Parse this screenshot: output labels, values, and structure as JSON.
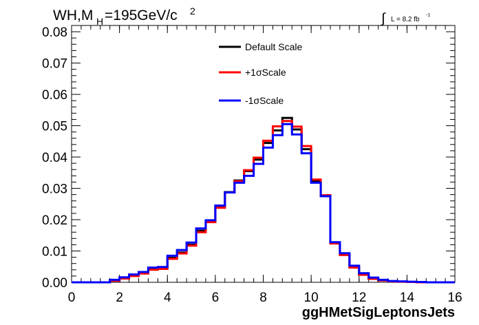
{
  "chart_data": {
    "type": "line",
    "title_main": "WH,M",
    "title_sub": "H",
    "title_rest": "=195GeV/c",
    "title_sup": "2",
    "lumi_text": "L = 8.2 fb",
    "lumi_sup": "-1",
    "xlabel": "ggHMetSigLeptonsJets",
    "xlim": [
      0,
      16
    ],
    "ylim": [
      0,
      0.082
    ],
    "xticks": [
      0,
      2,
      4,
      6,
      8,
      10,
      12,
      14,
      16
    ],
    "yticks": [
      "0.00",
      "0.01",
      "0.02",
      "0.03",
      "0.04",
      "0.05",
      "0.06",
      "0.07",
      "0.08"
    ],
    "bin_edges": [
      0,
      0.4,
      0.8,
      1.2,
      1.6,
      2.0,
      2.4,
      2.8,
      3.2,
      3.6,
      4.0,
      4.4,
      4.8,
      5.2,
      5.6,
      6.0,
      6.4,
      6.8,
      7.2,
      7.6,
      8.0,
      8.4,
      8.8,
      9.2,
      9.6,
      10.0,
      10.4,
      10.8,
      11.2,
      11.6,
      12.0,
      12.4,
      12.8,
      13.2,
      13.6,
      14.0,
      14.4,
      14.8,
      15.2,
      15.6,
      16.0
    ],
    "legend": {
      "placement": "top-center"
    },
    "series": [
      {
        "name": "Default Scale",
        "color": "#000000",
        "values": [
          0,
          0,
          0,
          0,
          0.0006,
          0.0013,
          0.0022,
          0.003,
          0.0042,
          0.0045,
          0.0078,
          0.0095,
          0.012,
          0.0165,
          0.0195,
          0.0242,
          0.0288,
          0.0325,
          0.0355,
          0.0392,
          0.0445,
          0.0485,
          0.0525,
          0.0488,
          0.0425,
          0.0322,
          0.0275,
          0.0125,
          0.0088,
          0.0048,
          0.0025,
          0.0012,
          0.0006,
          0.0003,
          0.0002,
          0.0001,
          0,
          0,
          0,
          0
        ]
      },
      {
        "name": "+1σScale",
        "color": "#ff0000",
        "values": [
          0,
          0,
          0,
          0,
          0.0005,
          0.0012,
          0.002,
          0.0028,
          0.004,
          0.0043,
          0.0075,
          0.0092,
          0.0117,
          0.016,
          0.0192,
          0.0238,
          0.0287,
          0.0323,
          0.0358,
          0.0398,
          0.0452,
          0.0498,
          0.0515,
          0.0497,
          0.0435,
          0.0328,
          0.0278,
          0.0124,
          0.0087,
          0.0047,
          0.0024,
          0.0011,
          0.0006,
          0.0003,
          0.0002,
          0.0001,
          0,
          0,
          0,
          0
        ]
      },
      {
        "name": "-1σScale",
        "color": "#0000ff",
        "values": [
          0,
          0,
          0,
          0,
          0.0008,
          0.0016,
          0.0025,
          0.0033,
          0.0047,
          0.0049,
          0.0085,
          0.0103,
          0.0127,
          0.0172,
          0.0198,
          0.0245,
          0.0287,
          0.0318,
          0.034,
          0.0378,
          0.043,
          0.047,
          0.0505,
          0.0472,
          0.0412,
          0.0318,
          0.0275,
          0.0128,
          0.0093,
          0.0053,
          0.0029,
          0.0015,
          0.0008,
          0.0004,
          0.0003,
          0.0002,
          0.0001,
          0,
          0,
          0
        ]
      }
    ]
  }
}
